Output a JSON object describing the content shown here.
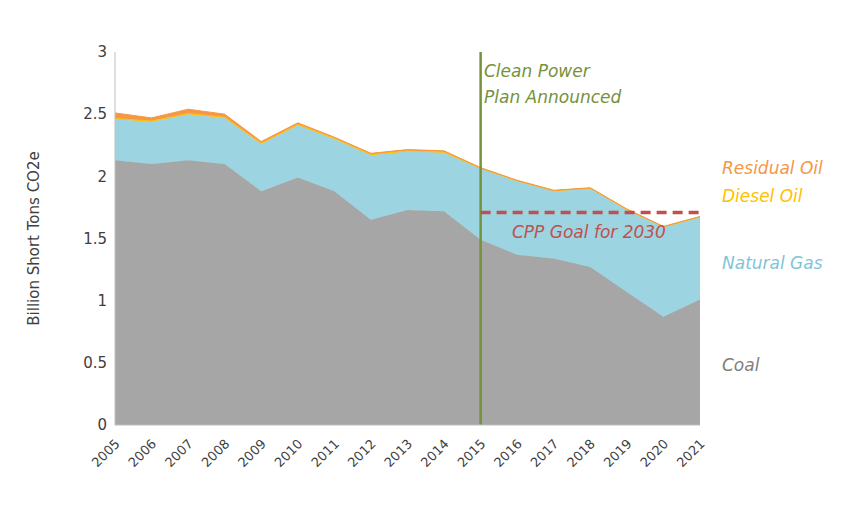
{
  "chart_data": {
    "type": "area",
    "stacked": true,
    "grid": false,
    "y_label": "Billion Short Tons CO2e",
    "categories": [
      "2005",
      "2006",
      "2007",
      "2008",
      "2009",
      "2010",
      "2011",
      "2012",
      "2013",
      "2014",
      "2015",
      "2016",
      "2017",
      "2018",
      "2019",
      "2020",
      "2021"
    ],
    "ylim": [
      0,
      3
    ],
    "yticks": [
      0,
      0.5,
      1,
      1.5,
      2,
      2.5,
      3
    ],
    "series": [
      {
        "name": "Coal",
        "color": "#a6a6a6",
        "label_color": "#808080",
        "values": [
          2.13,
          2.1,
          2.13,
          2.1,
          1.88,
          1.99,
          1.88,
          1.65,
          1.73,
          1.72,
          1.49,
          1.37,
          1.34,
          1.27,
          1.07,
          0.87,
          1.01
        ]
      },
      {
        "name": "Natural Gas",
        "color": "#9dd4e2",
        "label_color": "#7fc4d8",
        "values": [
          0.33,
          0.34,
          0.37,
          0.37,
          0.38,
          0.42,
          0.42,
          0.52,
          0.47,
          0.47,
          0.57,
          0.59,
          0.54,
          0.63,
          0.66,
          0.72,
          0.66
        ]
      },
      {
        "name": "Diesel Oil",
        "color": "#ffc000",
        "label_color": "#ffc000",
        "values": [
          0.01,
          0.01,
          0.01,
          0.01,
          0.01,
          0.01,
          0.01,
          0.01,
          0.01,
          0.01,
          0.005,
          0.005,
          0.005,
          0.005,
          0.005,
          0.005,
          0.005
        ]
      },
      {
        "name": "Residual Oil",
        "color": "#f79646",
        "label_color": "#f79646",
        "values": [
          0.04,
          0.02,
          0.03,
          0.02,
          0.01,
          0.01,
          0.005,
          0.005,
          0.005,
          0.005,
          0.005,
          0.003,
          0.003,
          0.003,
          0.002,
          0.002,
          0.002
        ]
      }
    ],
    "annotations": [
      {
        "type": "vline",
        "text": "Clean Power Plan Announced",
        "x": "2015",
        "color": "#76923c"
      },
      {
        "type": "hline",
        "text": "CPP Goal for 2030",
        "y": 1.71,
        "x": [
          "2015",
          "2021"
        ],
        "color": "#c0504d"
      }
    ]
  }
}
